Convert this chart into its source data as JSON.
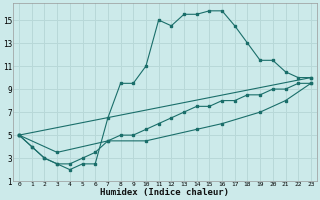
{
  "xlabel": "Humidex (Indice chaleur)",
  "bg_color": "#cceaea",
  "grid_color": "#b8d8d8",
  "line_color": "#1a6e6a",
  "xlim": [
    -0.5,
    23.5
  ],
  "ylim": [
    1,
    16.5
  ],
  "xticks": [
    0,
    1,
    2,
    3,
    4,
    5,
    6,
    7,
    8,
    9,
    10,
    11,
    12,
    13,
    14,
    15,
    16,
    17,
    18,
    19,
    20,
    21,
    22,
    23
  ],
  "yticks": [
    1,
    3,
    5,
    7,
    9,
    11,
    13,
    15
  ],
  "lines": [
    {
      "x": [
        0,
        1,
        2,
        3,
        4,
        5,
        6,
        7,
        8,
        9,
        10,
        11,
        12,
        13,
        14,
        15,
        16,
        17,
        18,
        19,
        20,
        21,
        22,
        23
      ],
      "y": [
        5,
        4,
        3,
        2.5,
        2,
        2.5,
        2.5,
        6.5,
        9.5,
        9.5,
        11,
        15,
        14.5,
        15.5,
        15.5,
        15.8,
        15.8,
        14.5,
        13,
        11.5,
        11.5,
        10.5,
        10,
        10
      ]
    },
    {
      "x": [
        0,
        23
      ],
      "y": [
        5,
        10
      ]
    },
    {
      "x": [
        0,
        1,
        2,
        3,
        4,
        5,
        6,
        7,
        8,
        9,
        10,
        11,
        12,
        13,
        14,
        15,
        16,
        17,
        18,
        19,
        20,
        21,
        22,
        23
      ],
      "y": [
        5,
        4,
        3,
        2.5,
        2.5,
        3,
        3.5,
        4.5,
        5,
        5,
        5.5,
        6,
        6.5,
        7,
        7.5,
        7.5,
        8,
        8,
        8.5,
        8.5,
        9,
        9,
        9.5,
        9.5
      ]
    },
    {
      "x": [
        0,
        3,
        7,
        10,
        14,
        16,
        19,
        21,
        23
      ],
      "y": [
        5,
        3.5,
        4.5,
        4.5,
        5.5,
        6,
        7,
        8,
        9.5
      ]
    }
  ]
}
